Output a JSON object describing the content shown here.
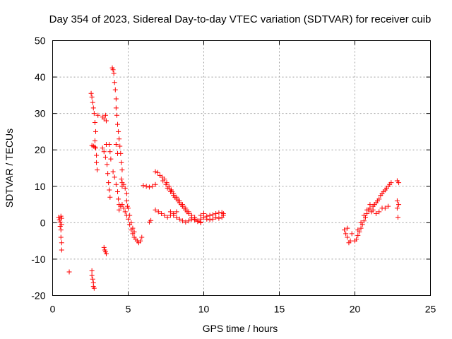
{
  "chart_data": {
    "type": "scatter",
    "title": "Day 354 of 2023, Sidereal Day-to-day VTEC variation (SDTVAR) for receiver cuib",
    "xlabel": "GPS time / hours",
    "ylabel": "SDTVAR / TECUs",
    "xlim": [
      0,
      25
    ],
    "ylim": [
      -20,
      50
    ],
    "xticks": [
      0,
      5,
      10,
      15,
      20,
      25
    ],
    "yticks": [
      -20,
      -10,
      0,
      10,
      20,
      30,
      40,
      50
    ],
    "grid": true,
    "marker": "+",
    "color": "#ff0000",
    "series": [
      {
        "name": "SDTVAR",
        "points": [
          [
            0.4,
            1.5
          ],
          [
            0.45,
            0.8
          ],
          [
            0.5,
            0.2
          ],
          [
            0.5,
            -1.0
          ],
          [
            0.55,
            1.8
          ],
          [
            0.6,
            1.2
          ],
          [
            0.6,
            -0.5
          ],
          [
            0.55,
            -2.0
          ],
          [
            0.55,
            -4.0
          ],
          [
            0.6,
            -5.5
          ],
          [
            0.6,
            -7.5
          ],
          [
            1.1,
            -13.5
          ],
          [
            2.6,
            -13.2
          ],
          [
            2.6,
            -14.5
          ],
          [
            2.65,
            -15.5
          ],
          [
            2.7,
            -16.5
          ],
          [
            2.7,
            -17.5
          ],
          [
            2.75,
            -18.0
          ],
          [
            2.55,
            35.5
          ],
          [
            2.6,
            34.5
          ],
          [
            2.65,
            33.0
          ],
          [
            2.7,
            31.5
          ],
          [
            2.75,
            30.0
          ],
          [
            2.8,
            27.5
          ],
          [
            2.85,
            25.0
          ],
          [
            2.8,
            22.5
          ],
          [
            2.85,
            20.5
          ],
          [
            2.9,
            18.5
          ],
          [
            2.9,
            16.5
          ],
          [
            2.95,
            14.5
          ],
          [
            2.6,
            21.2
          ],
          [
            2.7,
            21.0
          ],
          [
            2.8,
            20.8
          ],
          [
            3.0,
            29.5
          ],
          [
            3.3,
            29.0
          ],
          [
            3.4,
            28.5
          ],
          [
            3.5,
            29.5
          ],
          [
            3.55,
            28.0
          ],
          [
            3.4,
            -6.8
          ],
          [
            3.45,
            -7.5
          ],
          [
            3.5,
            -8.0
          ],
          [
            3.55,
            -8.5
          ],
          [
            3.3,
            20.5
          ],
          [
            3.4,
            19.5
          ],
          [
            3.5,
            18.0
          ],
          [
            3.55,
            21.5
          ],
          [
            3.6,
            16.0
          ],
          [
            3.65,
            13.5
          ],
          [
            3.7,
            11.0
          ],
          [
            3.75,
            9.0
          ],
          [
            3.8,
            7.0
          ],
          [
            3.75,
            21.5
          ],
          [
            3.8,
            19.5
          ],
          [
            3.85,
            17.5
          ],
          [
            3.95,
            42.5
          ],
          [
            4.0,
            42.0
          ],
          [
            4.05,
            41.0
          ],
          [
            4.1,
            38.5
          ],
          [
            4.15,
            36.5
          ],
          [
            4.2,
            34.0
          ],
          [
            4.2,
            31.5
          ],
          [
            4.25,
            29.5
          ],
          [
            4.3,
            27.0
          ],
          [
            4.35,
            25.0
          ],
          [
            4.4,
            23.0
          ],
          [
            4.45,
            21.0
          ],
          [
            4.5,
            19.0
          ],
          [
            4.55,
            16.5
          ],
          [
            4.6,
            14.5
          ],
          [
            4.55,
            12.0
          ],
          [
            4.6,
            10.0
          ],
          [
            4.0,
            14.0
          ],
          [
            4.1,
            12.5
          ],
          [
            4.2,
            10.5
          ],
          [
            4.3,
            8.5
          ],
          [
            4.35,
            6.5
          ],
          [
            4.4,
            5.0
          ],
          [
            4.2,
            21.5
          ],
          [
            4.3,
            19.0
          ],
          [
            4.6,
            11.0
          ],
          [
            4.7,
            10.5
          ],
          [
            4.8,
            9.5
          ],
          [
            4.9,
            8.0
          ],
          [
            4.9,
            6.0
          ],
          [
            4.95,
            4.5
          ],
          [
            4.4,
            3.5
          ],
          [
            4.5,
            4.5
          ],
          [
            4.6,
            5.0
          ],
          [
            4.7,
            4.0
          ],
          [
            4.8,
            3.0
          ],
          [
            4.9,
            2.0
          ],
          [
            5.0,
            1.0
          ],
          [
            5.1,
            -0.5
          ],
          [
            5.2,
            -2.0
          ],
          [
            5.3,
            -3.0
          ],
          [
            5.4,
            -4.0
          ],
          [
            5.5,
            -4.5
          ],
          [
            5.6,
            -5.0
          ],
          [
            5.7,
            -5.5
          ],
          [
            5.8,
            -5.0
          ],
          [
            5.9,
            -4.0
          ],
          [
            5.0,
            4.0
          ],
          [
            5.1,
            2.0
          ],
          [
            5.2,
            0.0
          ],
          [
            5.3,
            -1.5
          ],
          [
            5.4,
            -2.5
          ],
          [
            6.4,
            0.2
          ],
          [
            6.5,
            0.6
          ],
          [
            6.0,
            10.2
          ],
          [
            6.2,
            10.0
          ],
          [
            6.4,
            9.8
          ],
          [
            6.6,
            10.0
          ],
          [
            6.8,
            10.5
          ],
          [
            6.8,
            14.0
          ],
          [
            6.95,
            13.8
          ],
          [
            7.1,
            13.0
          ],
          [
            7.25,
            12.5
          ],
          [
            7.4,
            12.0
          ],
          [
            7.55,
            11.0
          ],
          [
            7.7,
            10.0
          ],
          [
            7.85,
            9.0
          ],
          [
            8.0,
            8.0
          ],
          [
            8.2,
            7.0
          ],
          [
            8.4,
            6.0
          ],
          [
            8.6,
            5.0
          ],
          [
            8.8,
            4.0
          ],
          [
            9.0,
            3.0
          ],
          [
            9.2,
            2.0
          ],
          [
            9.4,
            1.0
          ],
          [
            9.6,
            0.5
          ],
          [
            9.8,
            0.2
          ],
          [
            7.6,
            9.5
          ],
          [
            7.8,
            8.5
          ],
          [
            8.0,
            7.5
          ],
          [
            8.2,
            6.5
          ],
          [
            8.4,
            5.5
          ],
          [
            8.6,
            4.5
          ],
          [
            8.8,
            3.5
          ],
          [
            9.0,
            2.5
          ],
          [
            9.2,
            1.5
          ],
          [
            9.4,
            0.8
          ],
          [
            9.6,
            0.3
          ],
          [
            9.8,
            0.0
          ],
          [
            7.3,
            11.5
          ],
          [
            7.5,
            10.5
          ],
          [
            7.7,
            9.5
          ],
          [
            7.9,
            8.5
          ],
          [
            8.1,
            7.0
          ],
          [
            8.3,
            6.0
          ],
          [
            8.5,
            5.0
          ],
          [
            8.7,
            4.0
          ],
          [
            8.9,
            3.0
          ],
          [
            6.8,
            3.5
          ],
          [
            7.0,
            3.0
          ],
          [
            7.2,
            2.5
          ],
          [
            7.4,
            2.0
          ],
          [
            7.6,
            1.5
          ],
          [
            7.8,
            2.0
          ],
          [
            8.0,
            2.5
          ],
          [
            8.2,
            3.0
          ],
          [
            7.8,
            3.0
          ],
          [
            8.0,
            2.0
          ],
          [
            8.2,
            1.5
          ],
          [
            8.4,
            1.0
          ],
          [
            8.6,
            0.5
          ],
          [
            8.8,
            0.2
          ],
          [
            9.0,
            0.5
          ],
          [
            9.2,
            1.0
          ],
          [
            9.4,
            1.5
          ],
          [
            9.8,
            1.0
          ],
          [
            10.0,
            1.5
          ],
          [
            10.2,
            1.8
          ],
          [
            10.4,
            2.0
          ],
          [
            10.6,
            2.2
          ],
          [
            10.8,
            2.5
          ],
          [
            11.0,
            2.7
          ],
          [
            11.2,
            2.8
          ],
          [
            11.3,
            2.5
          ],
          [
            9.8,
            2.0
          ],
          [
            10.0,
            2.5
          ],
          [
            10.2,
            1.0
          ],
          [
            10.4,
            0.8
          ],
          [
            10.6,
            1.0
          ],
          [
            10.8,
            1.5
          ],
          [
            11.0,
            1.2
          ],
          [
            11.2,
            1.5
          ],
          [
            11.3,
            2.0
          ],
          [
            19.3,
            -2.0
          ],
          [
            19.4,
            -3.0
          ],
          [
            19.5,
            -4.0
          ],
          [
            19.6,
            -5.5
          ],
          [
            19.7,
            -5.0
          ],
          [
            19.5,
            -1.5
          ],
          [
            19.8,
            -3.0
          ],
          [
            20.0,
            -5.0
          ],
          [
            20.1,
            -4.5
          ],
          [
            20.2,
            -3.5
          ],
          [
            20.3,
            -2.5
          ],
          [
            20.4,
            -1.5
          ],
          [
            20.5,
            -0.5
          ],
          [
            20.6,
            0.5
          ],
          [
            20.7,
            1.5
          ],
          [
            20.8,
            2.5
          ],
          [
            20.9,
            3.5
          ],
          [
            21.0,
            4.0
          ],
          [
            21.1,
            3.0
          ],
          [
            21.2,
            4.5
          ],
          [
            21.3,
            5.0
          ],
          [
            21.4,
            5.5
          ],
          [
            21.5,
            6.0
          ],
          [
            21.6,
            6.5
          ],
          [
            21.7,
            7.5
          ],
          [
            21.8,
            8.0
          ],
          [
            21.9,
            8.5
          ],
          [
            22.0,
            9.0
          ],
          [
            22.1,
            9.5
          ],
          [
            22.2,
            10.0
          ],
          [
            22.3,
            10.5
          ],
          [
            22.4,
            11.0
          ],
          [
            20.2,
            -2.0
          ],
          [
            20.4,
            0.0
          ],
          [
            20.6,
            2.0
          ],
          [
            20.8,
            3.5
          ],
          [
            21.0,
            5.0
          ],
          [
            21.2,
            3.5
          ],
          [
            21.4,
            2.5
          ],
          [
            21.6,
            3.0
          ],
          [
            21.8,
            4.0
          ],
          [
            22.0,
            4.0
          ],
          [
            22.2,
            4.5
          ],
          [
            22.8,
            11.5
          ],
          [
            22.9,
            11.0
          ],
          [
            22.8,
            6.0
          ],
          [
            22.9,
            5.0
          ],
          [
            22.8,
            4.0
          ],
          [
            22.85,
            1.5
          ]
        ]
      }
    ]
  }
}
